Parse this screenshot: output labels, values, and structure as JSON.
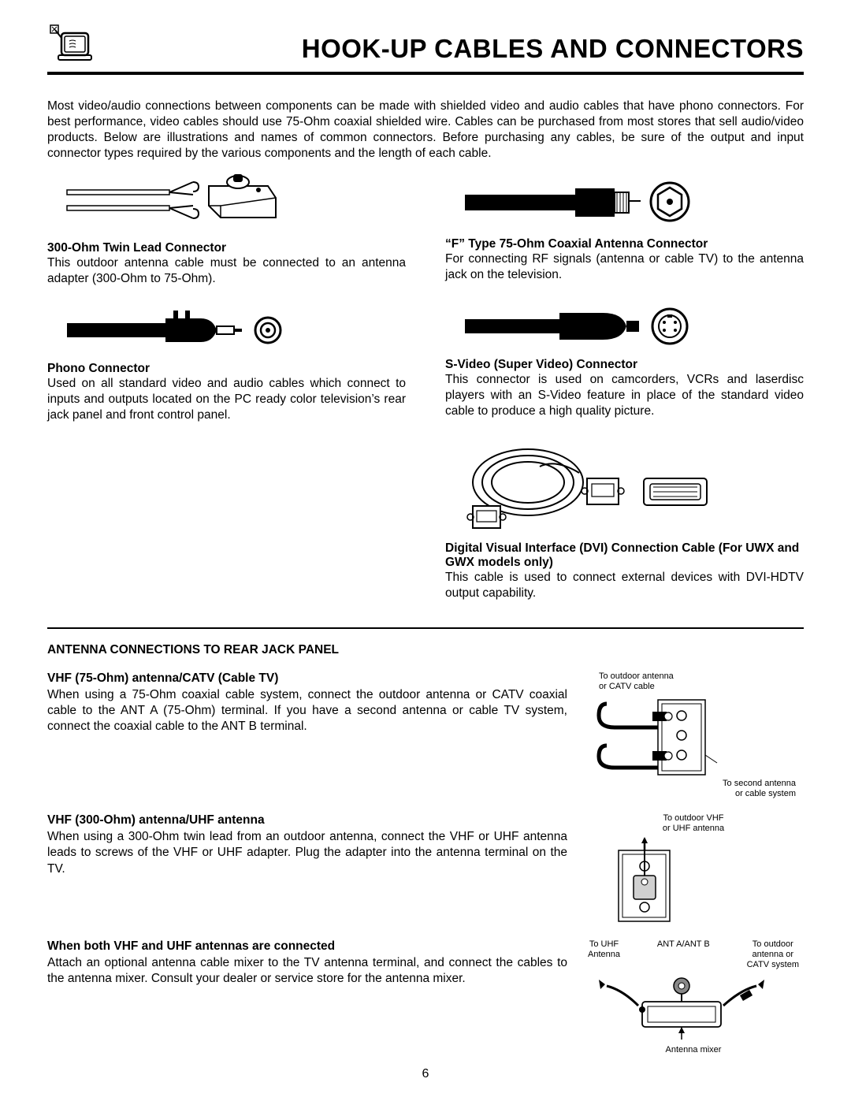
{
  "page": {
    "title": "HOOK-UP CABLES AND CONNECTORS",
    "intro": "Most video/audio connections between components can be made with shielded video and audio cables that have phono connectors. For best performance, video cables should use 75-Ohm coaxial shielded wire. Cables can be purchased from most stores that sell audio/video products. Below are illustrations and names of common connectors.  Before purchasing any cables, be sure of the output and input connector types required by the various components and the length of each cable.",
    "page_number": "6"
  },
  "connectors": {
    "twin_lead": {
      "title": "300-Ohm Twin Lead Connector",
      "body": "This outdoor antenna cable must be connected to an antenna adapter (300-Ohm to 75-Ohm)."
    },
    "f_type": {
      "title": "“F” Type 75-Ohm Coaxial Antenna Connector",
      "body": "For connecting RF signals (antenna or cable TV) to the antenna jack on the television."
    },
    "phono": {
      "title": "Phono Connector",
      "body": "Used on all standard video and audio cables which connect to inputs and outputs located on the PC ready color television’s rear jack panel and front control panel."
    },
    "svideo": {
      "title": "S-Video (Super Video) Connector",
      "body": "This connector is used on camcorders, VCRs and laserdisc players with an S-Video feature in place of the standard video cable to produce a high quality picture."
    },
    "dvi": {
      "title": "Digital Visual Interface (DVI) Connection Cable (For UWX and GWX models only)",
      "body": "This cable is used to connect external devices with DVI-HDTV output capability."
    }
  },
  "antenna": {
    "section_title": "ANTENNA CONNECTIONS TO REAR JACK PANEL",
    "vhf75": {
      "title": "VHF (75-Ohm) antenna/CATV (Cable TV)",
      "body": "When using a 75-Ohm coaxial cable system, connect the outdoor antenna or CATV coaxial cable to the ANT A (75-Ohm) terminal.  If you have a second antenna or cable TV system, connect the coaxial cable to the ANT B terminal."
    },
    "vhf300": {
      "title": "VHF (300-Ohm) antenna/UHF antenna",
      "body": "When using a 300-Ohm twin lead from an outdoor antenna, connect the VHF or UHF antenna leads to screws of the VHF or UHF adapter.  Plug the adapter into the antenna terminal on the TV."
    },
    "both": {
      "title": "When both VHF and UHF antennas are connected",
      "body": "Attach an optional antenna cable mixer to the TV antenna terminal, and connect the cables to the antenna mixer. Consult your dealer or service store for the antenna mixer."
    },
    "captions": {
      "c1a": "To outdoor antenna\nor CATV cable",
      "c1b": "To second antenna\nor cable system",
      "c2": "To outdoor VHF\nor UHF antenna",
      "c3a": "To UHF\nAntenna",
      "c3b": "ANT A/ANT B",
      "c3c": "To outdoor\nantenna or\nCATV system",
      "c3d": "Antenna mixer"
    }
  }
}
